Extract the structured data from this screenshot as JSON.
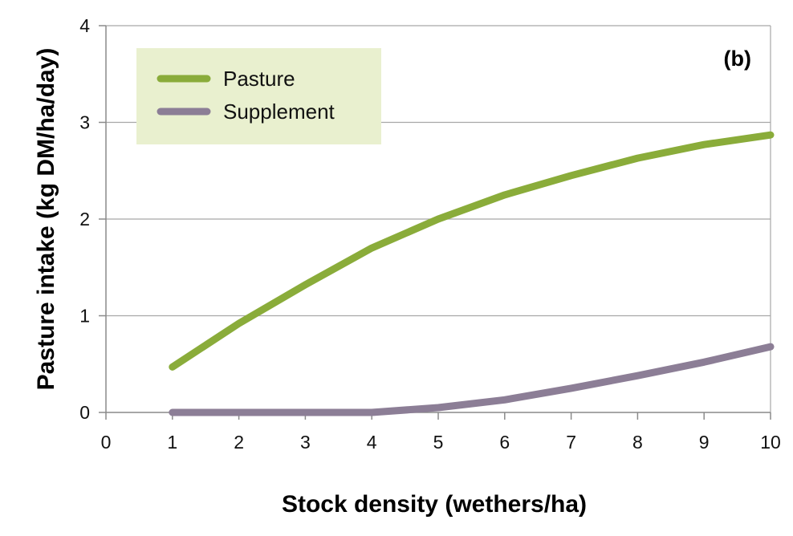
{
  "chart_data": {
    "type": "line",
    "panel_label": "(b)",
    "xlabel": "Stock density (wethers/ha)",
    "ylabel": "Pasture intake (kg DM/ha/day)",
    "xlim": [
      0,
      10
    ],
    "ylim": [
      0,
      4
    ],
    "xticks": [
      0,
      1,
      2,
      3,
      4,
      5,
      6,
      7,
      8,
      9,
      10
    ],
    "yticks": [
      0,
      1,
      2,
      3,
      4
    ],
    "grid": "horizontal",
    "legend_position": "top-left",
    "legend_background": "#e9f0cf",
    "series": [
      {
        "name": "Pasture",
        "color": "#8aac3a",
        "x": [
          1,
          2,
          3,
          4,
          5,
          6,
          7,
          8,
          9,
          10
        ],
        "y": [
          0.47,
          0.92,
          1.32,
          1.7,
          2.0,
          2.25,
          2.45,
          2.63,
          2.77,
          2.87
        ]
      },
      {
        "name": "Supplement",
        "color": "#8c7e96",
        "x": [
          1,
          2,
          3,
          4,
          5,
          6,
          7,
          8,
          9,
          10
        ],
        "y": [
          0.0,
          0.0,
          0.0,
          0.0,
          0.05,
          0.13,
          0.25,
          0.38,
          0.52,
          0.68
        ]
      }
    ]
  }
}
